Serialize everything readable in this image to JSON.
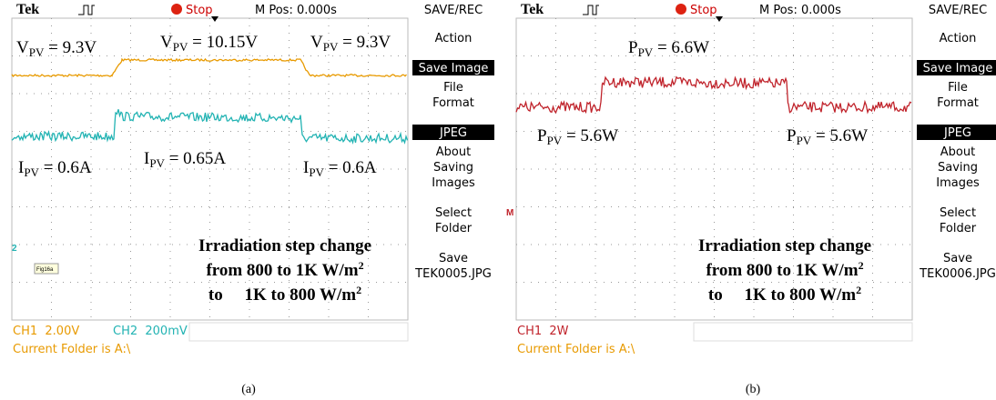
{
  "panels": [
    {
      "header": {
        "brand": "Tek",
        "status": "Stop",
        "position": "M Pos: 0.000s",
        "menu_title": "SAVE/REC"
      },
      "menu": [
        {
          "lines": [
            "Action"
          ]
        },
        {
          "lines": [
            "Save Image"
          ],
          "selected": true
        },
        {
          "lines": [
            "File",
            "Format"
          ]
        },
        {
          "lines": [
            "JPEG"
          ],
          "selected": true
        },
        {
          "lines": [
            "About",
            "Saving",
            "Images"
          ]
        },
        {
          "lines": [
            "Select",
            "Folder"
          ]
        },
        {
          "lines": [
            "Save",
            "TEK0005.JPG"
          ]
        }
      ],
      "channels": [
        {
          "label": "CH1  2.00V",
          "color": "#e89a00"
        },
        {
          "label": "CH2  200mV",
          "color": "#22b3b3"
        }
      ],
      "folder": "Current Folder is A:\\",
      "marker": "2",
      "tag": "Fig16a",
      "annotations": [
        {
          "base": "V",
          "sub": "PV",
          "rest": " = 9.3V"
        },
        {
          "base": "V",
          "sub": "PV",
          "rest": " = 10.15V"
        },
        {
          "base": "V",
          "sub": "PV",
          "rest": " = 9.3V"
        },
        {
          "base": "I",
          "sub": "PV",
          "rest": " = 0.6A"
        },
        {
          "base": "I",
          "sub": "PV",
          "rest": " = 0.65A"
        },
        {
          "base": "I",
          "sub": "PV",
          "rest": " = 0.6A"
        }
      ],
      "note": [
        {
          "text": "Irradiation step change"
        },
        {
          "text": "from 800 to 1K W/m",
          "sup": "2"
        },
        {
          "text": "to     1K to 800 W/m",
          "sup": "2"
        }
      ],
      "caption": "(a)"
    },
    {
      "header": {
        "brand": "Tek",
        "status": "Stop",
        "position": "M Pos: 0.000s",
        "menu_title": "SAVE/REC"
      },
      "menu": [
        {
          "lines": [
            "Action"
          ]
        },
        {
          "lines": [
            "Save Image"
          ],
          "selected": true
        },
        {
          "lines": [
            "File",
            "Format"
          ]
        },
        {
          "lines": [
            "JPEG"
          ],
          "selected": true
        },
        {
          "lines": [
            "About",
            "Saving",
            "Images"
          ]
        },
        {
          "lines": [
            "Select",
            "Folder"
          ]
        },
        {
          "lines": [
            "Save",
            "TEK0006.JPG"
          ]
        }
      ],
      "channels": [
        {
          "label": "CH1  2W",
          "color": "#c0232b"
        }
      ],
      "folder": "Current Folder is A:\\",
      "marker": "M",
      "annotations": [
        {
          "base": "P",
          "sub": "PV",
          "rest": " = 6.6W"
        },
        {
          "base": "P",
          "sub": "PV",
          "rest": " = 5.6W"
        },
        {
          "base": "P",
          "sub": "PV",
          "rest": " = 5.6W"
        }
      ],
      "note": [
        {
          "text": "Irradiation step change"
        },
        {
          "text": "from 800 to 1K W/m",
          "sup": "2"
        },
        {
          "text": "to     1K to 800 W/m",
          "sup": "2"
        }
      ],
      "caption": "(b)"
    }
  ]
}
